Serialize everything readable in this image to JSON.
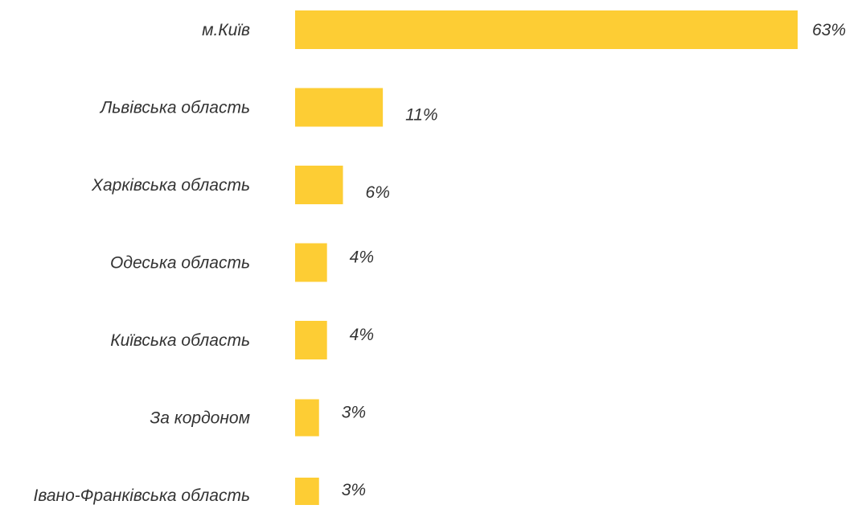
{
  "chart_data": {
    "type": "bar",
    "orientation": "horizontal",
    "title": "",
    "xlabel": "",
    "ylabel": "",
    "grid": false,
    "legend": "none",
    "xlim": [
      0,
      63
    ],
    "categories": [
      "м.Київ",
      "Львівська область",
      "Харківська область",
      "Одеська область",
      "Київська область",
      "За кордоном",
      "Івано-Франківська область"
    ],
    "values": [
      63,
      11,
      6,
      4,
      4,
      3,
      3
    ],
    "value_labels": [
      "63%",
      "11%",
      "6%",
      "4%",
      "4%",
      "3%",
      "3%"
    ],
    "colors": {
      "bar": "#FDCD34",
      "text": "#333333",
      "background": "#FFFFFF"
    }
  }
}
